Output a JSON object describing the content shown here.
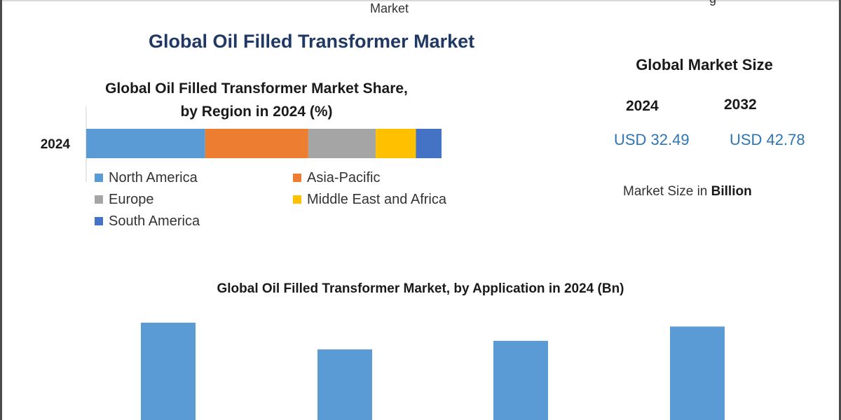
{
  "header": {
    "top_fragment": "Market",
    "top_right_fragment": "g",
    "main_title": "Global Oil Filled Transformer Market"
  },
  "market_size": {
    "title": "Global Market Size",
    "years": [
      "2024",
      "2032"
    ],
    "values": [
      "USD 32.49",
      "USD 42.78"
    ],
    "unit_prefix": "Market Size in",
    "unit_bold": "Billion",
    "value_color": "#2e75b6"
  },
  "chart_data": [
    {
      "type": "bar",
      "orientation": "horizontal-stacked",
      "title": "Global Oil Filled Transformer Market Share,",
      "subtitle": "by Region in 2024 (%)",
      "categories": [
        "2024"
      ],
      "series": [
        {
          "name": "North America",
          "values": [
            33.5
          ],
          "color": "#5b9bd5"
        },
        {
          "name": "Asia-Pacific",
          "values": [
            29
          ],
          "color": "#ed7d31"
        },
        {
          "name": "Europe",
          "values": [
            19
          ],
          "color": "#a5a5a5"
        },
        {
          "name": "Middle East and Africa",
          "values": [
            11.3
          ],
          "color": "#ffc000"
        },
        {
          "name": "South America",
          "values": [
            7.2
          ],
          "color": "#4472c4"
        }
      ],
      "xlim": [
        0,
        100
      ],
      "legend": "bottom",
      "grid": false
    },
    {
      "type": "bar",
      "title": "Global Oil Filled Transformer Market, by Application in 2024 (Bn)",
      "categories": [
        "",
        "",
        "",
        ""
      ],
      "values": [
        10.2,
        7.4,
        8.3,
        9.8
      ],
      "ylim": [
        0,
        10.2
      ],
      "color": "#5b9bd5",
      "grid": false
    }
  ]
}
